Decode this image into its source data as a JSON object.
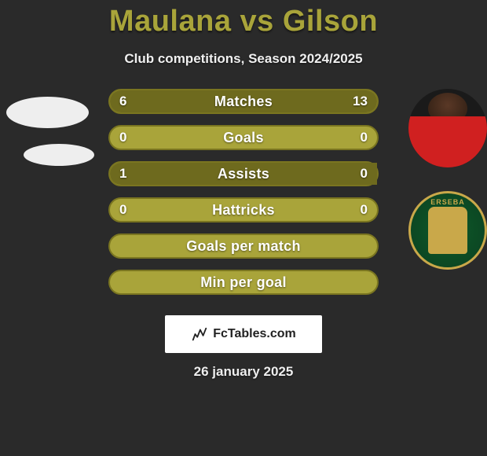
{
  "title": "Maulana vs Gilson",
  "subtitle": "Club competitions, Season 2024/2025",
  "date": "26 january 2025",
  "fctables_label": "FcTables.com",
  "colors": {
    "bar_bg": "#a9a43a",
    "bar_fill": "#6e6a1e",
    "bar_border": "#7a7520",
    "title_color": "#a9a43a",
    "page_bg": "#2a2a2a",
    "badge_border": "#c9a84a",
    "badge_bg": "#0f5a2a"
  },
  "bars": [
    {
      "label": "Matches",
      "left": "6",
      "right": "13",
      "left_pct": 31.6,
      "right_pct": 68.4
    },
    {
      "label": "Goals",
      "left": "0",
      "right": "0",
      "left_pct": 0,
      "right_pct": 0
    },
    {
      "label": "Assists",
      "left": "1",
      "right": "0",
      "left_pct": 100,
      "right_pct": 0
    },
    {
      "label": "Hattricks",
      "left": "0",
      "right": "0",
      "left_pct": 0,
      "right_pct": 0
    },
    {
      "label": "Goals per match",
      "left": "",
      "right": "",
      "left_pct": 0,
      "right_pct": 0
    },
    {
      "label": "Min per goal",
      "left": "",
      "right": "",
      "left_pct": 0,
      "right_pct": 0
    }
  ],
  "club_badge_text": "ERSEBA"
}
